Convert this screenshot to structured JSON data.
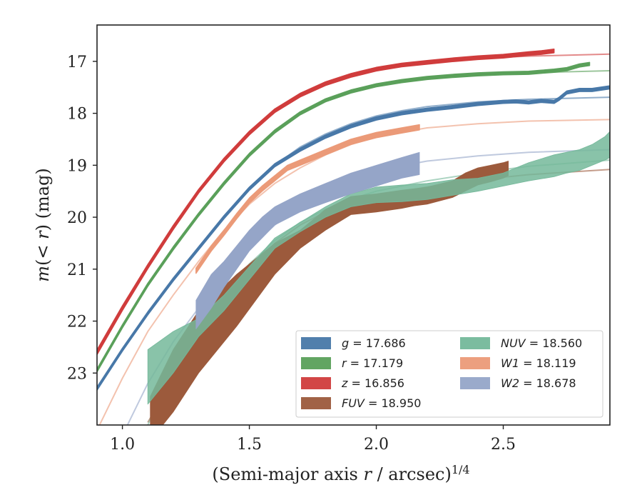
{
  "chart_data": {
    "type": "line",
    "xlabel": "(Semi-major axis r / arcsec)^1/4",
    "ylabel": "m(<r) (mag)",
    "xlim": [
      0.9,
      2.92
    ],
    "ylim": [
      24.0,
      16.3
    ],
    "y_inverted": true,
    "grid": false,
    "legend_placement": "lower-right",
    "xticks": [
      {
        "value": 1.0,
        "label": "1.0"
      },
      {
        "value": 1.5,
        "label": "1.5"
      },
      {
        "value": 2.0,
        "label": "2.0"
      },
      {
        "value": 2.5,
        "label": "2.5"
      }
    ],
    "yticks": [
      {
        "value": 17,
        "label": "17"
      },
      {
        "value": 18,
        "label": "18"
      },
      {
        "value": 19,
        "label": "19"
      },
      {
        "value": 20,
        "label": "20"
      },
      {
        "value": 21,
        "label": "21"
      },
      {
        "value": 22,
        "label": "22"
      },
      {
        "value": 23,
        "label": "23"
      }
    ],
    "series": [
      {
        "name": "g = 17.686",
        "legend_italic": "g",
        "legend_rest": " = 17.686",
        "color": "#4878a8",
        "model": {
          "x": [
            0.9,
            1.0,
            1.1,
            1.2,
            1.3,
            1.4,
            1.5,
            1.6,
            1.7,
            1.8,
            1.9,
            2.0,
            2.1,
            2.2,
            2.4,
            2.6,
            2.92
          ],
          "y": [
            23.3,
            22.55,
            21.85,
            21.2,
            20.6,
            20.0,
            19.45,
            19.0,
            18.65,
            18.4,
            18.2,
            18.05,
            17.95,
            17.87,
            17.78,
            17.73,
            17.69
          ]
        },
        "data": {
          "x": [
            0.9,
            1.0,
            1.1,
            1.2,
            1.3,
            1.4,
            1.5,
            1.6,
            1.7,
            1.8,
            1.9,
            2.0,
            2.1,
            2.2,
            2.3,
            2.4,
            2.5,
            2.55,
            2.6,
            2.65,
            2.7,
            2.72,
            2.75,
            2.8,
            2.85,
            2.92
          ],
          "y": [
            23.3,
            22.55,
            21.85,
            21.2,
            20.6,
            20.0,
            19.45,
            19.0,
            18.7,
            18.45,
            18.25,
            18.1,
            18.0,
            17.93,
            17.88,
            17.82,
            17.78,
            17.77,
            17.79,
            17.76,
            17.78,
            17.72,
            17.6,
            17.55,
            17.55,
            17.5
          ],
          "width": [
            0.06,
            0.06,
            0.06,
            0.06,
            0.06,
            0.06,
            0.06,
            0.06,
            0.06,
            0.06,
            0.06,
            0.06,
            0.06,
            0.06,
            0.06,
            0.06,
            0.06,
            0.06,
            0.06,
            0.06,
            0.06,
            0.06,
            0.06,
            0.06,
            0.06,
            0.06
          ]
        }
      },
      {
        "name": "r = 17.179",
        "legend_italic": "r",
        "legend_rest": " = 17.179",
        "color": "#5aa05a",
        "model": {
          "x": [
            0.9,
            1.0,
            1.1,
            1.2,
            1.3,
            1.4,
            1.5,
            1.6,
            1.7,
            1.8,
            1.9,
            2.0,
            2.1,
            2.2,
            2.4,
            2.6,
            2.92
          ],
          "y": [
            22.95,
            22.1,
            21.3,
            20.6,
            19.95,
            19.35,
            18.8,
            18.35,
            18.0,
            17.75,
            17.58,
            17.46,
            17.38,
            17.32,
            17.26,
            17.22,
            17.18
          ]
        },
        "data": {
          "x": [
            0.9,
            1.0,
            1.1,
            1.2,
            1.3,
            1.4,
            1.5,
            1.6,
            1.7,
            1.8,
            1.9,
            2.0,
            2.1,
            2.2,
            2.3,
            2.4,
            2.5,
            2.6,
            2.65,
            2.7,
            2.75,
            2.8,
            2.84
          ],
          "y": [
            22.95,
            22.1,
            21.3,
            20.6,
            19.95,
            19.35,
            18.8,
            18.35,
            18.0,
            17.75,
            17.58,
            17.46,
            17.38,
            17.32,
            17.28,
            17.25,
            17.23,
            17.22,
            17.2,
            17.18,
            17.15,
            17.08,
            17.05
          ],
          "width": [
            0.06,
            0.06,
            0.06,
            0.06,
            0.06,
            0.06,
            0.06,
            0.06,
            0.06,
            0.06,
            0.06,
            0.06,
            0.06,
            0.06,
            0.06,
            0.06,
            0.06,
            0.06,
            0.06,
            0.06,
            0.06,
            0.06,
            0.06
          ]
        }
      },
      {
        "name": "z = 16.856",
        "legend_italic": "z",
        "legend_rest": " = 16.856",
        "color": "#d03c3c",
        "model": {
          "x": [
            0.9,
            1.0,
            1.1,
            1.2,
            1.3,
            1.4,
            1.5,
            1.6,
            1.7,
            1.8,
            1.9,
            2.0,
            2.1,
            2.2,
            2.4,
            2.6,
            2.92
          ],
          "y": [
            22.6,
            21.75,
            20.95,
            20.2,
            19.5,
            18.9,
            18.38,
            17.95,
            17.65,
            17.43,
            17.27,
            17.15,
            17.07,
            17.01,
            16.94,
            16.9,
            16.86
          ]
        },
        "data": {
          "x": [
            0.9,
            1.0,
            1.1,
            1.2,
            1.3,
            1.4,
            1.5,
            1.6,
            1.7,
            1.8,
            1.9,
            2.0,
            2.1,
            2.2,
            2.3,
            2.4,
            2.5,
            2.6,
            2.65,
            2.7
          ],
          "y": [
            22.6,
            21.75,
            20.95,
            20.2,
            19.5,
            18.9,
            18.38,
            17.95,
            17.65,
            17.43,
            17.27,
            17.15,
            17.07,
            17.02,
            16.97,
            16.93,
            16.9,
            16.85,
            16.83,
            16.8
          ],
          "width": [
            0.09,
            0.09,
            0.08,
            0.08,
            0.07,
            0.07,
            0.07,
            0.07,
            0.07,
            0.07,
            0.07,
            0.07,
            0.07,
            0.07,
            0.07,
            0.07,
            0.07,
            0.07,
            0.07,
            0.07
          ]
        }
      },
      {
        "name": "FUV = 18.950",
        "legend_italic": "FUV",
        "legend_rest": " = 18.950",
        "color": "#9c5a3c",
        "model": {
          "x": [
            1.1,
            1.2,
            1.3,
            1.4,
            1.5,
            1.6,
            1.7,
            1.8,
            1.9,
            2.0,
            2.2,
            2.4,
            2.6,
            2.92
          ],
          "y": [
            23.95,
            23.1,
            22.3,
            21.6,
            21.0,
            20.5,
            20.15,
            19.9,
            19.72,
            19.6,
            19.42,
            19.28,
            19.18,
            19.08
          ]
        },
        "data": {
          "x": [
            1.11,
            1.2,
            1.3,
            1.45,
            1.6,
            1.7,
            1.8,
            1.9,
            2.0,
            2.1,
            2.15,
            2.2,
            2.3,
            2.35,
            2.4,
            2.45,
            2.5,
            2.52
          ],
          "y_top": [
            23.45,
            22.55,
            21.8,
            21.1,
            20.5,
            20.25,
            19.85,
            19.6,
            19.55,
            19.48,
            19.45,
            19.42,
            19.3,
            19.15,
            19.05,
            19.0,
            18.95,
            18.92
          ],
          "y_bottom": [
            24.3,
            23.75,
            23.0,
            22.1,
            21.1,
            20.6,
            20.25,
            19.95,
            19.9,
            19.83,
            19.78,
            19.75,
            19.62,
            19.5,
            19.38,
            19.32,
            19.25,
            19.2
          ]
        }
      },
      {
        "name": "NUV = 18.560",
        "legend_italic": "NUV",
        "legend_rest": " = 18.560",
        "color": "#74b89a",
        "model": {
          "x": [
            1.1,
            1.2,
            1.3,
            1.4,
            1.5,
            1.6,
            1.7,
            1.8,
            1.9,
            2.0,
            2.2,
            2.4,
            2.6,
            2.92
          ],
          "y": [
            24.0,
            22.9,
            22.1,
            21.45,
            20.9,
            20.45,
            20.1,
            19.85,
            19.65,
            19.5,
            19.3,
            19.15,
            19.02,
            18.9
          ]
        },
        "data": {
          "x": [
            1.1,
            1.2,
            1.3,
            1.4,
            1.5,
            1.6,
            1.7,
            1.8,
            1.9,
            2.0,
            2.1,
            2.2,
            2.3,
            2.4,
            2.5,
            2.6,
            2.7,
            2.75,
            2.8,
            2.85,
            2.9,
            2.92
          ],
          "y_top": [
            22.55,
            22.2,
            21.95,
            21.5,
            20.95,
            20.4,
            20.1,
            19.8,
            19.55,
            19.42,
            19.38,
            19.35,
            19.28,
            19.25,
            19.15,
            18.95,
            18.8,
            18.75,
            18.7,
            18.6,
            18.45,
            18.35
          ],
          "y_bottom": [
            23.6,
            23.0,
            22.3,
            21.8,
            21.2,
            20.6,
            20.28,
            20.0,
            19.8,
            19.72,
            19.7,
            19.66,
            19.58,
            19.5,
            19.4,
            19.3,
            19.22,
            19.15,
            19.1,
            19.0,
            18.9,
            18.85
          ]
        }
      },
      {
        "name": "W1 = 18.119",
        "legend_italic": "W1",
        "legend_rest": " = 18.119",
        "color": "#eb9a78",
        "model": {
          "x": [
            0.9,
            1.0,
            1.1,
            1.2,
            1.3,
            1.4,
            1.5,
            1.6,
            1.7,
            1.8,
            1.9,
            2.0,
            2.2,
            2.4,
            2.6,
            2.92
          ],
          "y": [
            24.1,
            23.1,
            22.2,
            21.5,
            20.85,
            20.25,
            19.75,
            19.35,
            19.05,
            18.8,
            18.6,
            18.45,
            18.28,
            18.2,
            18.15,
            18.12
          ]
        },
        "data": {
          "x": [
            1.29,
            1.35,
            1.4,
            1.45,
            1.5,
            1.55,
            1.6,
            1.65,
            1.7,
            1.8,
            1.9,
            2.0,
            2.1,
            2.17
          ],
          "y": [
            21.03,
            20.6,
            20.3,
            19.98,
            19.68,
            19.45,
            19.25,
            19.05,
            18.95,
            18.75,
            18.55,
            18.42,
            18.33,
            18.27
          ],
          "width": [
            0.1,
            0.1,
            0.1,
            0.1,
            0.1,
            0.1,
            0.1,
            0.1,
            0.1,
            0.1,
            0.1,
            0.1,
            0.1,
            0.1
          ]
        }
      },
      {
        "name": "W2 = 18.678",
        "legend_italic": "W2",
        "legend_rest": " = 18.678",
        "color": "#95a5c8",
        "model": {
          "x": [
            1.0,
            1.1,
            1.2,
            1.3,
            1.4,
            1.5,
            1.6,
            1.7,
            1.8,
            1.9,
            2.0,
            2.2,
            2.4,
            2.6,
            2.92
          ],
          "y": [
            24.2,
            23.2,
            22.4,
            21.75,
            21.15,
            20.6,
            20.15,
            19.78,
            19.5,
            19.3,
            19.1,
            18.92,
            18.82,
            18.75,
            18.7
          ]
        },
        "data": {
          "x": [
            1.29,
            1.35,
            1.4,
            1.45,
            1.5,
            1.55,
            1.6,
            1.7,
            1.8,
            1.9,
            2.0,
            2.1,
            2.17
          ],
          "y_top": [
            21.6,
            21.1,
            20.85,
            20.55,
            20.25,
            20.0,
            19.8,
            19.55,
            19.35,
            19.15,
            19.0,
            18.85,
            18.75
          ],
          "y_bottom": [
            22.15,
            21.75,
            21.35,
            21.0,
            20.65,
            20.4,
            20.15,
            19.9,
            19.72,
            19.55,
            19.4,
            19.25,
            19.18
          ]
        }
      }
    ]
  }
}
